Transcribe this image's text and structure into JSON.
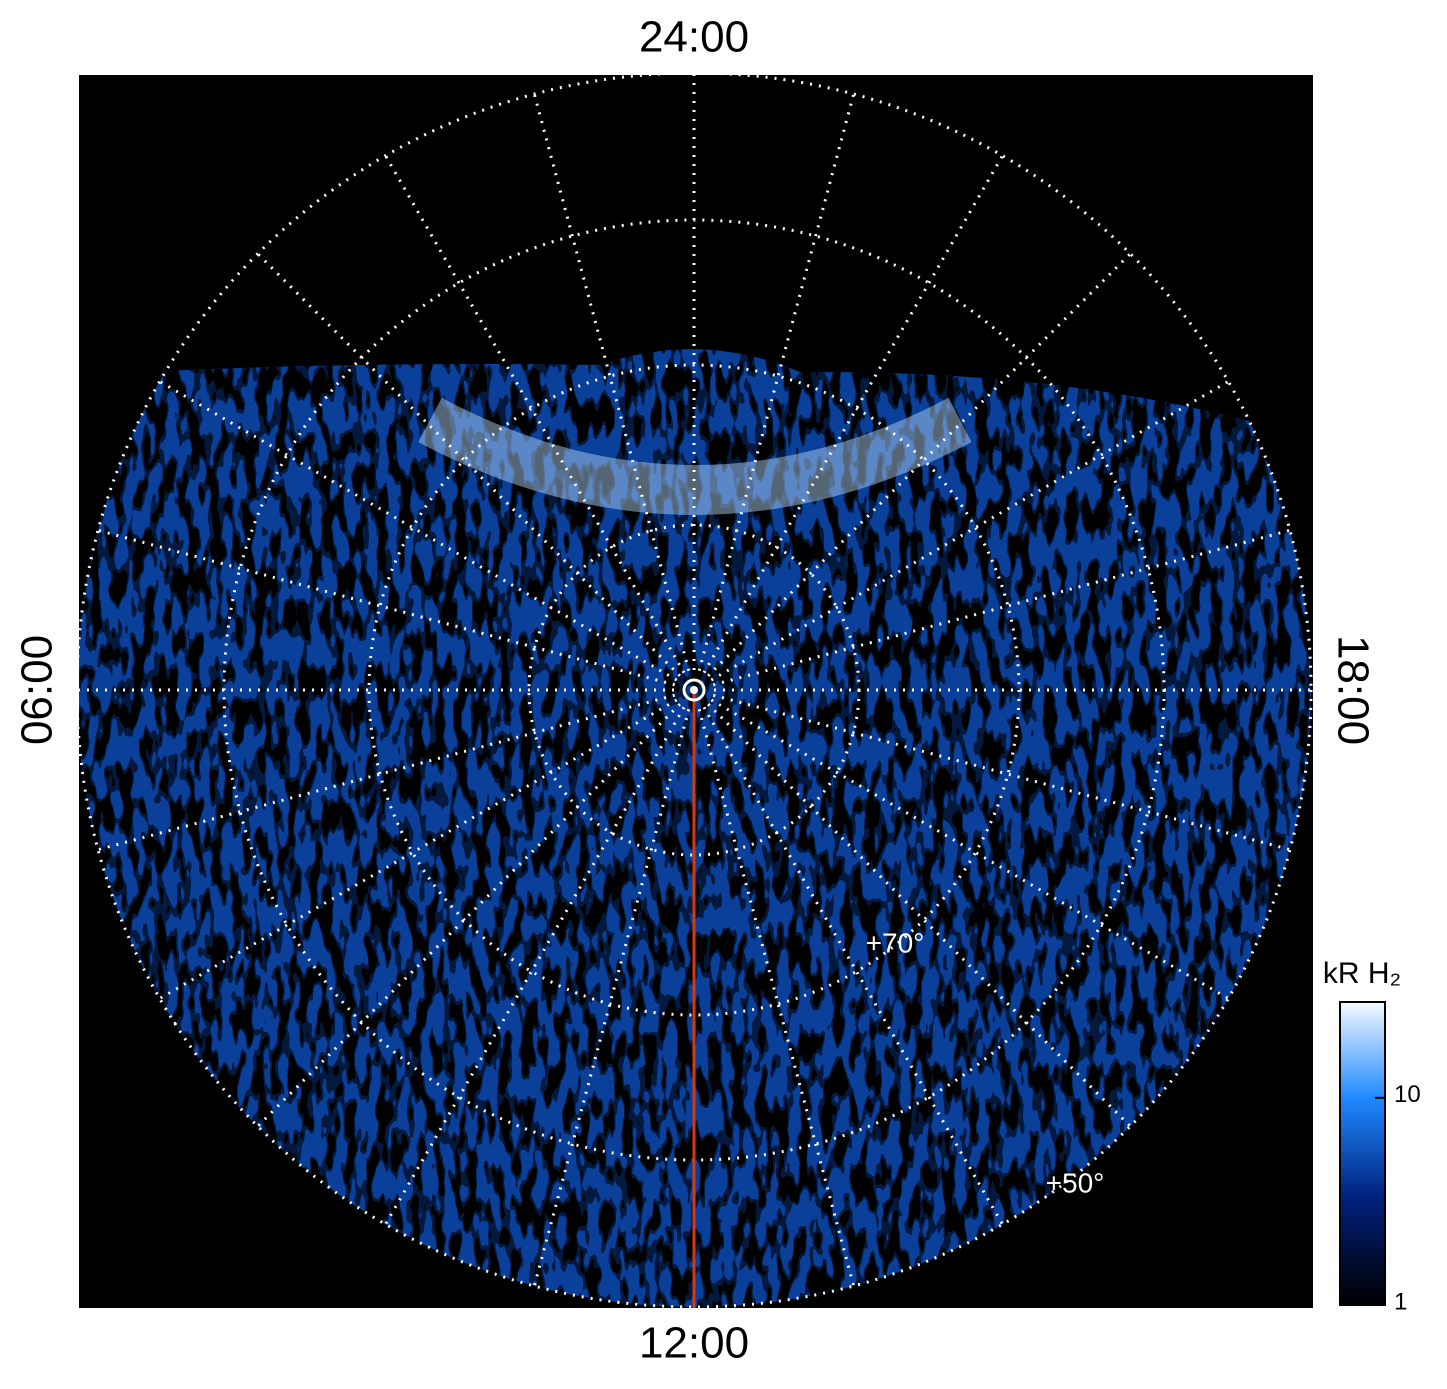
{
  "polar_map": {
    "time_labels": {
      "top": "24:00",
      "bottom": "12:00",
      "left": "06:00",
      "right": "18:00"
    },
    "latitude_labels": [
      "+70°",
      "+50°"
    ],
    "colorbar": {
      "label": "kR H₂",
      "lim": [
        1,
        29
      ],
      "ticks": [
        1,
        10
      ],
      "log": true
    }
  }
}
